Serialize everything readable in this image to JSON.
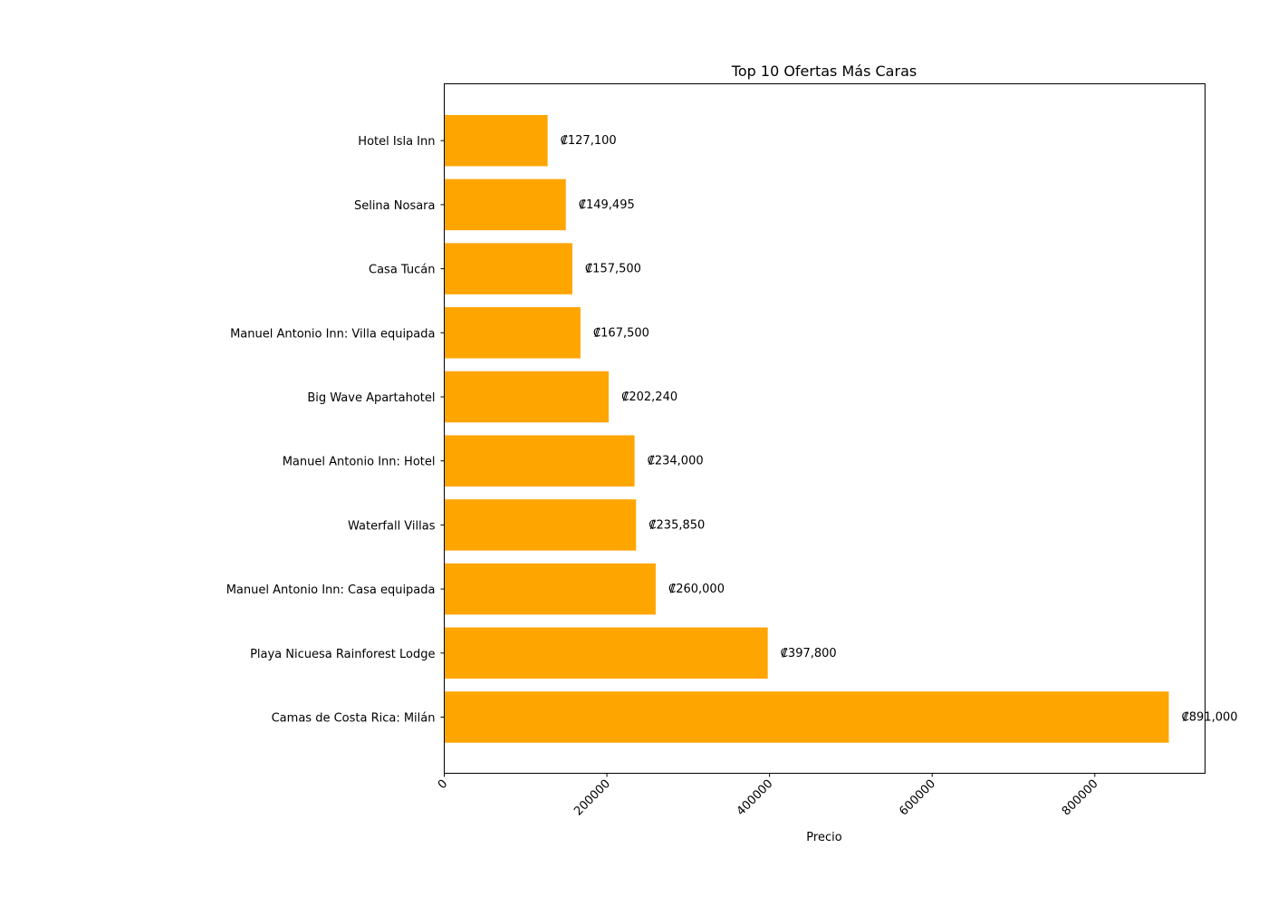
{
  "chart_data": {
    "type": "bar",
    "orientation": "horizontal",
    "title": "Top 10 Ofertas Más Caras",
    "xlabel": "Precio",
    "ylabel": "",
    "categories": [
      "Camas de Costa Rica: Milán",
      "Playa Nicuesa Rainforest Lodge",
      "Manuel Antonio Inn: Casa equipada",
      "Waterfall Villas",
      "Manuel Antonio Inn: Hotel",
      "Big Wave Apartahotel",
      "Manuel Antonio Inn: Villa equipada",
      "Casa Tucán",
      "Selina Nosara",
      "Hotel Isla Inn"
    ],
    "values": [
      891000,
      397800,
      260000,
      235850,
      234000,
      202240,
      167500,
      157500,
      149495,
      127100
    ],
    "data_labels": [
      "₡891,000",
      "₡397,800",
      "₡260,000",
      "₡235,850",
      "₡234,000",
      "₡202,240",
      "₡167,500",
      "₡157,500",
      "₡149,495",
      "₡127,100"
    ],
    "xlim": [
      0,
      935550
    ],
    "xticks": [
      0,
      200000,
      400000,
      600000,
      800000
    ],
    "xtick_labels": [
      "0",
      "200000",
      "400000",
      "600000",
      "800000"
    ],
    "bar_color": "#FFA500",
    "grid": false,
    "legend": "none"
  }
}
